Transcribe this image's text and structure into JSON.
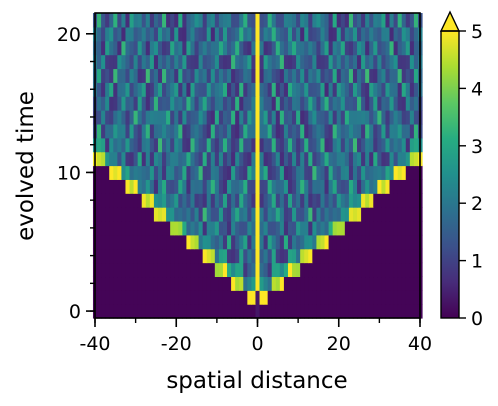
{
  "chart_data": {
    "type": "heatmap",
    "title": "",
    "xlabel": "spatial distance",
    "ylabel": "evolved time",
    "xlim": [
      -40,
      40
    ],
    "ylim": [
      -0.5,
      21.5
    ],
    "xticks": [
      -40,
      -20,
      0,
      20,
      40
    ],
    "yticks": [
      0,
      10,
      20
    ],
    "x_minor_step": 10,
    "y_minor_step": 2,
    "colorbar": {
      "min": 0,
      "max": 5,
      "ticks": [
        0,
        1,
        2,
        3,
        4,
        5
      ],
      "extend": "max",
      "colormap": "viridis"
    },
    "x_range": [
      -40,
      40
    ],
    "t_range": [
      0,
      21
    ],
    "front_speed": 3.8,
    "front_start": 1,
    "center_bright_from_t": 2,
    "background_value": 0.05,
    "interior_value_range": [
      0.6,
      2.2
    ]
  }
}
